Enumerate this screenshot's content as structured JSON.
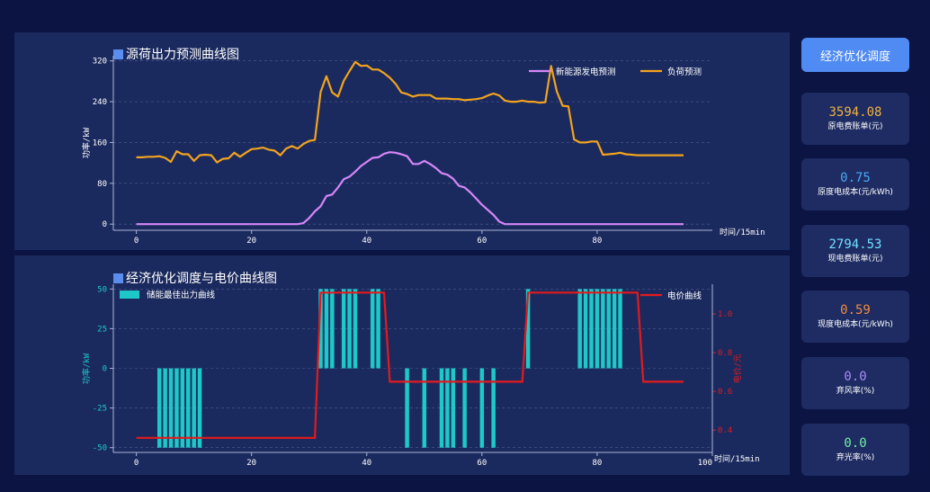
{
  "chart_data": [
    {
      "type": "line",
      "title": "源荷出力预测曲线图",
      "xlabel": "时间/15min",
      "ylabel": "功率/kW",
      "ylim": [
        -12,
        330
      ],
      "xlim": [
        -4,
        100
      ],
      "xticks": [
        0,
        20,
        40,
        60,
        80
      ],
      "yticks": [
        0,
        80,
        160,
        240,
        320
      ],
      "legend": "top-right",
      "grid": true,
      "x": [
        0,
        1,
        2,
        3,
        4,
        5,
        6,
        7,
        8,
        9,
        10,
        11,
        12,
        13,
        14,
        15,
        16,
        17,
        18,
        19,
        20,
        21,
        22,
        23,
        24,
        25,
        26,
        27,
        28,
        29,
        30,
        31,
        32,
        33,
        34,
        35,
        36,
        37,
        38,
        39,
        40,
        41,
        42,
        43,
        44,
        45,
        46,
        47,
        48,
        49,
        50,
        51,
        52,
        53,
        54,
        55,
        56,
        57,
        58,
        59,
        60,
        61,
        62,
        63,
        64,
        65,
        66,
        67,
        68,
        69,
        70,
        71,
        72,
        73,
        74,
        75,
        76,
        77,
        78,
        79,
        80,
        81,
        82,
        83,
        84,
        85,
        86,
        87,
        88,
        89,
        90,
        91,
        92,
        93,
        94,
        95
      ],
      "series": [
        {
          "name": "新能源发电预测",
          "color": "#d586f7",
          "values": [
            0,
            0,
            0,
            0,
            0,
            0,
            0,
            0,
            0,
            0,
            0,
            0,
            0,
            0,
            0,
            0,
            0,
            0,
            0,
            0,
            0,
            0,
            0,
            0,
            0,
            0,
            0,
            0,
            0,
            2,
            12,
            25,
            35,
            55,
            58,
            72,
            88,
            93,
            103,
            114,
            122,
            130,
            131,
            138,
            141,
            140,
            137,
            133,
            118,
            118,
            124,
            118,
            110,
            100,
            97,
            89,
            75,
            72,
            62,
            50,
            38,
            28,
            18,
            5,
            0,
            0,
            0,
            0,
            0,
            0,
            0,
            0,
            0,
            0,
            0,
            0,
            0,
            0,
            0,
            0,
            0,
            0,
            0,
            0,
            0,
            0,
            0,
            0,
            0,
            0,
            0,
            0,
            0,
            0,
            0,
            0
          ]
        },
        {
          "name": "负荷预测",
          "color": "#f2a31e",
          "values": [
            131,
            131,
            132,
            132,
            133,
            130,
            122,
            143,
            137,
            137,
            124,
            135,
            136,
            135,
            121,
            128,
            129,
            140,
            132,
            140,
            147,
            148,
            150,
            146,
            144,
            135,
            148,
            153,
            148,
            157,
            163,
            165,
            259,
            290,
            258,
            250,
            281,
            300,
            318,
            310,
            311,
            303,
            303,
            296,
            287,
            275,
            258,
            255,
            250,
            253,
            253,
            253,
            246,
            246,
            246,
            245,
            245,
            243,
            244,
            245,
            247,
            252,
            256,
            252,
            242,
            240,
            240,
            242,
            240,
            240,
            238,
            239,
            310,
            260,
            232,
            231,
            166,
            160,
            160,
            162,
            162,
            136,
            137,
            138,
            140,
            137,
            136,
            135,
            135,
            135,
            135,
            135,
            135,
            135,
            135,
            135
          ]
        }
      ]
    },
    {
      "type": "bar",
      "title": "经济优化调度与电价曲线图",
      "xlabel": "时间/15min",
      "ylabel": "功率/kW",
      "y2label": "电价/元",
      "ylim": [
        -53,
        53
      ],
      "y2lim": [
        0.285,
        1.153
      ],
      "xlim": [
        -4,
        100
      ],
      "xticks": [
        0,
        20,
        40,
        60,
        80,
        100
      ],
      "yticks": [
        -50,
        -25,
        0,
        25,
        50
      ],
      "y2ticks": [
        0.4,
        0.6,
        0.8,
        1.0
      ],
      "legend": "top-left, top-right",
      "grid": true,
      "bar_series": {
        "name": "储能最佳出力曲线",
        "color": "#1ec8c8",
        "x": [
          4,
          5,
          6,
          7,
          8,
          9,
          10,
          11,
          32,
          33,
          34,
          36,
          37,
          38,
          41,
          42,
          47,
          50,
          53,
          54,
          55,
          57,
          60,
          62,
          68,
          77,
          78,
          79,
          80,
          81,
          82,
          83,
          84
        ],
        "values": [
          -50,
          -50,
          -50,
          -50,
          -50,
          -50,
          -50,
          -50,
          50,
          50,
          50,
          50,
          50,
          50,
          50,
          50,
          -50,
          -50,
          -50,
          -50,
          -50,
          -50,
          -50,
          -50,
          50,
          50,
          50,
          50,
          50,
          50,
          50,
          50,
          50
        ]
      },
      "line_series": {
        "name": "电价曲线",
        "color": "#e31a1c",
        "x": [
          0,
          31,
          32,
          43,
          44,
          67,
          68,
          87,
          88,
          95
        ],
        "values": [
          0.36,
          0.36,
          1.11,
          1.11,
          0.65,
          0.65,
          1.11,
          1.11,
          0.65,
          0.65
        ]
      }
    }
  ],
  "panel_titles": {
    "chart1": "源荷出力预测曲线图",
    "chart2": "经济优化调度与电价曲线图"
  },
  "button": {
    "label": "经济优化调度"
  },
  "stats": [
    {
      "value": "3594.08",
      "label": "原电费账单(元)",
      "color": "#f2b23e"
    },
    {
      "value": "0.75",
      "label": "原度电成本(元/kWh)",
      "color": "#4aa8f5"
    },
    {
      "value": "2794.53",
      "label": "现电费账单(元)",
      "color": "#6fe0ff"
    },
    {
      "value": "0.59",
      "label": "现度电成本(元/kWh)",
      "color": "#f28a3a"
    },
    {
      "value": "0.0",
      "label": "弃风率(%)",
      "color": "#a98cf5"
    },
    {
      "value": "0.0",
      "label": "弃光率(%)",
      "color": "#6ff0a0"
    }
  ]
}
